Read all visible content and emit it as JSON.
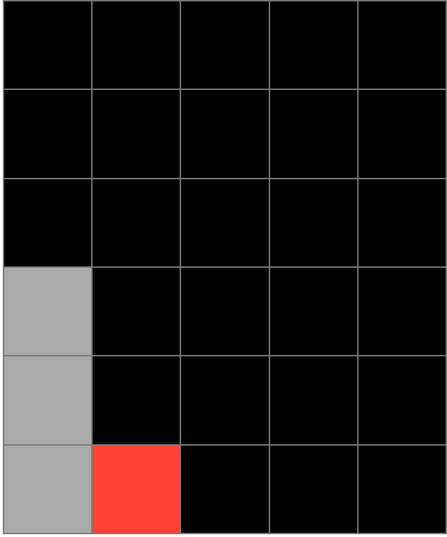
{
  "grid": {
    "rows": 6,
    "cols": 5,
    "colors": {
      "empty": "#000000",
      "gray": "#aaaaaa",
      "red": "#ff4136",
      "gridline": "#7a7a7a"
    },
    "cells": [
      [
        "empty",
        "empty",
        "empty",
        "empty",
        "empty"
      ],
      [
        "empty",
        "empty",
        "empty",
        "empty",
        "empty"
      ],
      [
        "empty",
        "empty",
        "empty",
        "empty",
        "empty"
      ],
      [
        "gray",
        "empty",
        "empty",
        "empty",
        "empty"
      ],
      [
        "gray",
        "empty",
        "empty",
        "empty",
        "empty"
      ],
      [
        "gray",
        "red",
        "empty",
        "empty",
        "empty"
      ]
    ]
  }
}
